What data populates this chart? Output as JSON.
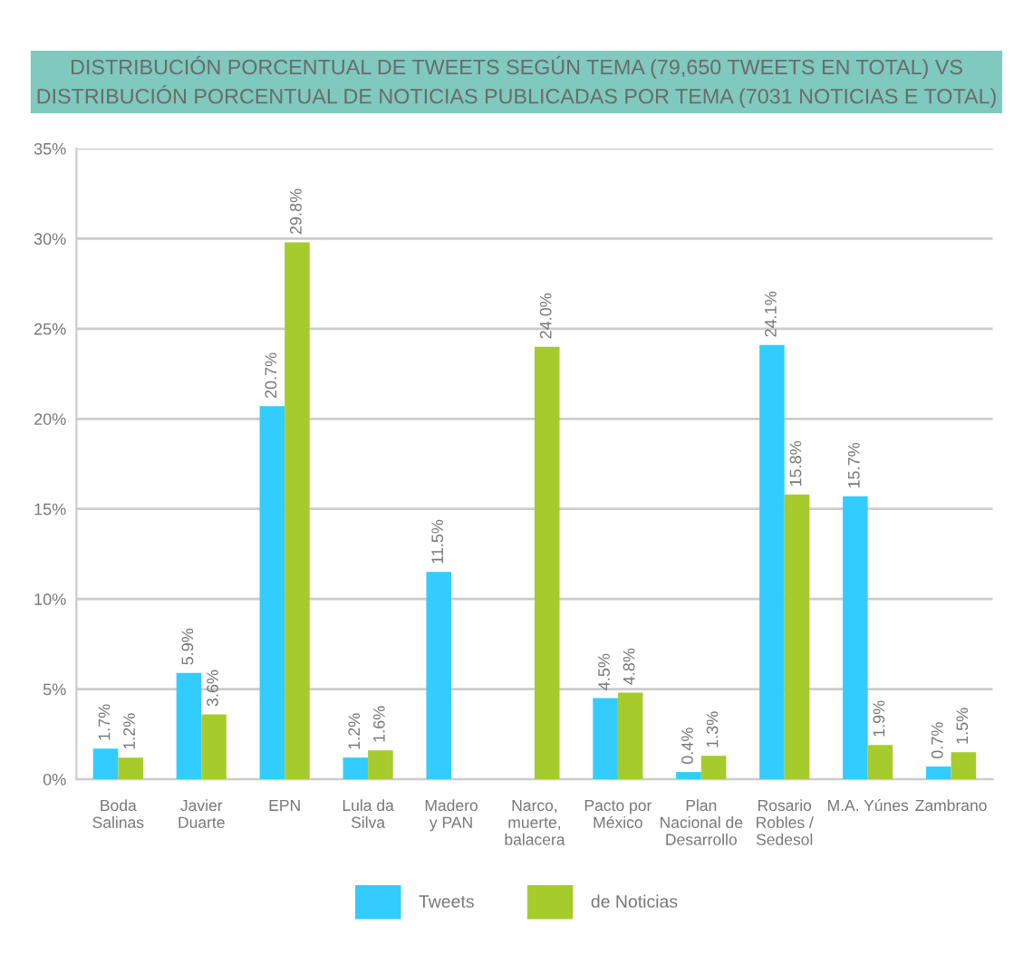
{
  "chart_data": {
    "type": "bar",
    "title": "DISTRIBUCIÓN PORCENTUAL DE TWEETS SEGÚN TEMA (79,650 TWEETS EN TOTAL) VS\nDISTRIBUCIÓN PORCENTUAL DE NOTICIAS PUBLICADAS POR TEMA (7031 NOTICIAS E TOTAL)",
    "categories": [
      "Boda\nSalinas",
      "Javier\nDuarte",
      "EPN",
      "Lula da\nSilva",
      "Madero\ny PAN",
      "Narco,\nmuerte,\nbalacera",
      "Pacto por\nMéxico",
      "Plan\nNacional de\nDesarrollo",
      "Rosario\nRobles /\nSedesol",
      "M.A. Yúnes",
      "Zambrano"
    ],
    "series": [
      {
        "name": "Tweets",
        "color": "#33ccff",
        "values": [
          1.7,
          5.9,
          20.7,
          1.2,
          11.5,
          null,
          4.5,
          0.4,
          24.1,
          15.7,
          0.7
        ],
        "value_labels": [
          "1.7%",
          "5.9%",
          "20.7%",
          "1.2%",
          "11.5%",
          null,
          "4.5%",
          "0.4%",
          "24.1%",
          "15.7%",
          "0.7%"
        ]
      },
      {
        "name": "de Noticias",
        "color": "#a5cc2c",
        "values": [
          1.2,
          3.6,
          29.8,
          1.6,
          null,
          24.0,
          4.8,
          1.3,
          15.8,
          1.9,
          1.5
        ],
        "value_labels": [
          "1.2%",
          "3.6%",
          "29.8%",
          "1.6%",
          null,
          "24.0%",
          "4.8%",
          "1.3%",
          "15.8%",
          "1.9%",
          "1.5%"
        ]
      }
    ],
    "ylim": [
      0,
      35
    ],
    "yticks": [
      {
        "value": 0,
        "label": "0%"
      },
      {
        "value": 5,
        "label": "5%"
      },
      {
        "value": 10,
        "label": "10%"
      },
      {
        "value": 15,
        "label": "15%"
      },
      {
        "value": 20,
        "label": "20%"
      },
      {
        "value": 25,
        "label": "25%"
      },
      {
        "value": 30,
        "label": "30%"
      },
      {
        "value": 35,
        "label": "35%"
      }
    ],
    "grid": "y",
    "legend": "bottom"
  }
}
